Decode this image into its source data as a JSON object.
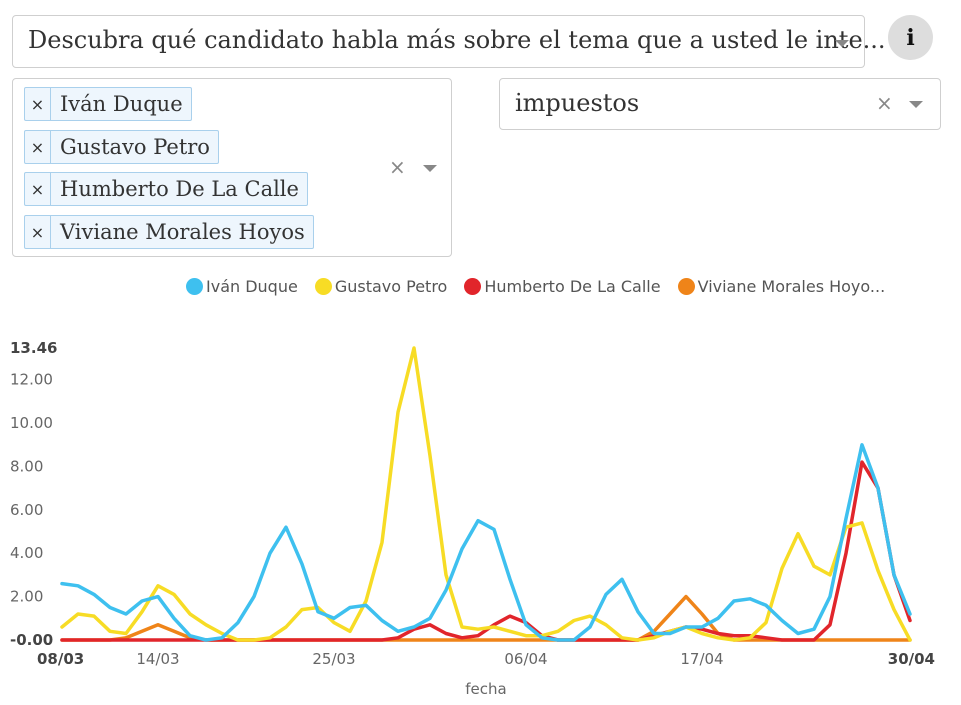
{
  "topic_select": {
    "value": "Descubra qué candidato habla más sobre el tema que a usted le inte..."
  },
  "info_button": {
    "icon": "info-icon",
    "glyph": "i"
  },
  "candidates": {
    "selected": [
      "Iván Duque",
      "Gustavo Petro",
      "Humberto De La Calle",
      "Viviane Morales Hoyos"
    ],
    "remove_glyph": "×",
    "clear_glyph": "×"
  },
  "keyword_select": {
    "value": "impuestos",
    "clear_glyph": "×"
  },
  "chart_data": {
    "type": "line",
    "xlabel": "fecha",
    "ylabel": "",
    "ylim": [
      0,
      13.46
    ],
    "y_ticks": [
      "-0.00",
      "2.00",
      "4.00",
      "6.00",
      "8.00",
      "10.00",
      "12.00",
      "13.46"
    ],
    "x_ticks": [
      "08/03",
      "14/03",
      "25/03",
      "06/04",
      "17/04",
      "30/04"
    ],
    "x_ticks_bold": [
      "08/03",
      "30/04"
    ],
    "legend": [
      "Iván Duque",
      "Gustavo Petro",
      "Humberto De La Calle",
      "Viviane Morales Hoyo..."
    ],
    "colors": [
      "#3ec0ef",
      "#f7dc25",
      "#e1252b",
      "#ef8419"
    ],
    "x": [
      "08/03",
      "09/03",
      "10/03",
      "11/03",
      "12/03",
      "13/03",
      "14/03",
      "15/03",
      "16/03",
      "17/03",
      "18/03",
      "19/03",
      "20/03",
      "21/03",
      "22/03",
      "23/03",
      "24/03",
      "25/03",
      "26/03",
      "27/03",
      "28/03",
      "29/03",
      "30/03",
      "31/03",
      "01/04",
      "02/04",
      "03/04",
      "04/04",
      "05/04",
      "06/04",
      "07/04",
      "08/04",
      "09/04",
      "10/04",
      "11/04",
      "12/04",
      "13/04",
      "14/04",
      "15/04",
      "16/04",
      "17/04",
      "18/04",
      "19/04",
      "20/04",
      "21/04",
      "22/04",
      "23/04",
      "24/04",
      "25/04",
      "26/04",
      "27/04",
      "28/04",
      "29/04",
      "30/04"
    ],
    "series": [
      {
        "name": "Iván Duque",
        "values": [
          2.6,
          2.5,
          2.1,
          1.5,
          1.2,
          1.8,
          2.0,
          1.0,
          0.2,
          0.0,
          0.1,
          0.8,
          2.0,
          4.0,
          5.2,
          3.5,
          1.3,
          1.0,
          1.5,
          1.6,
          0.9,
          0.4,
          0.6,
          1.0,
          2.3,
          4.2,
          5.5,
          5.1,
          2.8,
          0.7,
          0.1,
          0.0,
          0.0,
          0.6,
          2.1,
          2.8,
          1.3,
          0.3,
          0.3,
          0.6,
          0.6,
          1.0,
          1.8,
          1.9,
          1.6,
          0.9,
          0.3,
          0.5,
          2.0,
          5.6,
          9.0,
          7.0,
          3.0,
          1.2
        ]
      },
      {
        "name": "Gustavo Petro",
        "values": [
          0.6,
          1.2,
          1.1,
          0.4,
          0.3,
          1.3,
          2.5,
          2.1,
          1.2,
          0.7,
          0.3,
          0.0,
          0.0,
          0.1,
          0.6,
          1.4,
          1.5,
          0.8,
          0.4,
          1.8,
          4.5,
          10.5,
          13.46,
          8.5,
          3.0,
          0.6,
          0.5,
          0.6,
          0.4,
          0.2,
          0.2,
          0.4,
          0.9,
          1.1,
          0.7,
          0.1,
          0.0,
          0.1,
          0.4,
          0.6,
          0.3,
          0.1,
          0.0,
          0.1,
          0.8,
          3.3,
          4.9,
          3.4,
          3.0,
          5.2,
          5.4,
          3.2,
          1.4,
          0.0
        ]
      },
      {
        "name": "Humberto De La Calle",
        "values": [
          0,
          0,
          0,
          0,
          0,
          0,
          0,
          0,
          0,
          0,
          0,
          0,
          0,
          0,
          0,
          0,
          0,
          0,
          0,
          0,
          0,
          0.1,
          0.5,
          0.7,
          0.3,
          0.1,
          0.2,
          0.7,
          1.1,
          0.8,
          0.2,
          0,
          0,
          0,
          0,
          0,
          0,
          0.2,
          0.4,
          0.6,
          0.5,
          0.3,
          0.2,
          0.2,
          0.1,
          0,
          0,
          0,
          0.7,
          4.0,
          8.2,
          7.0,
          3.0,
          0.9
        ]
      },
      {
        "name": "Viviane Morales Hoyos",
        "values": [
          0,
          0,
          0,
          0,
          0.1,
          0.4,
          0.7,
          0.4,
          0.1,
          0,
          0,
          0,
          0,
          0,
          0,
          0,
          0,
          0,
          0,
          0,
          0,
          0,
          0,
          0,
          0,
          0,
          0,
          0,
          0,
          0,
          0,
          0,
          0,
          0,
          0,
          0,
          0,
          0.4,
          1.2,
          2.0,
          1.2,
          0.3,
          0,
          0,
          0,
          0,
          0,
          0,
          0,
          0,
          0,
          0,
          0,
          0
        ]
      }
    ]
  }
}
